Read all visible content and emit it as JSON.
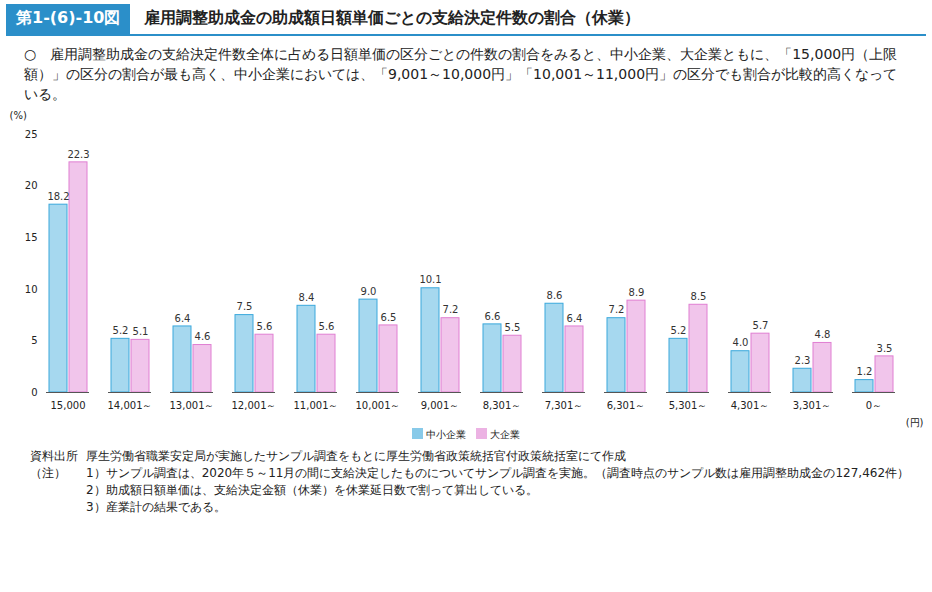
{
  "chart_data": {
    "type": "bar",
    "header_number": "第1-(6)-10図",
    "title": "雇用調整助成金の助成額日額単価ごとの支給決定件数の割合（休業）",
    "subtitle": "○　雇用調整助成金の支給決定件数全体に占める日額単価の区分ごとの件数の割合をみると、中小企業、大企業ともに、「15,000円（上限額）」の区分の割合が最も高く、中小企業においては、「9,001～10,000円」「10,001～11,000円」の区分でも割合が比較的高くなっている。",
    "x_label": "(円)",
    "y_label": "(%)",
    "categories": [
      "15,000",
      "14,001～",
      "13,001～",
      "12,001～",
      "11,001～",
      "10,001～",
      "9,001～",
      "8,301～",
      "7,301～",
      "6,301～",
      "5,301～",
      "4,301～",
      "3,301～",
      "0～"
    ],
    "series": [
      {
        "name": "中小企業",
        "color": "#3aa8dc",
        "values": [
          18.2,
          5.2,
          6.4,
          7.5,
          8.4,
          9.0,
          10.1,
          6.6,
          8.6,
          7.2,
          5.2,
          4.0,
          2.3,
          1.2
        ],
        "value_labels": [
          "18.2",
          "5.2",
          "6.4",
          "7.5",
          "8.4",
          "9.0",
          "10.1",
          "6.6",
          "8.6",
          "7.2",
          "5.2",
          "4.0",
          "2.3",
          "1.2"
        ]
      },
      {
        "name": "大企業",
        "color": "#e07fd2",
        "values": [
          22.3,
          5.1,
          4.6,
          5.6,
          5.6,
          6.5,
          7.2,
          5.5,
          6.4,
          8.9,
          8.5,
          5.7,
          4.8,
          3.5
        ],
        "value_labels": [
          "22.3",
          "5.1",
          "4.6",
          "5.6",
          "5.6",
          "6.5",
          "7.2",
          "5.5",
          "6.4",
          "8.9",
          "8.5",
          "5.7",
          "4.8",
          "3.5"
        ]
      }
    ],
    "ylim": [
      0,
      25
    ],
    "yticks": [
      0,
      5,
      10,
      15,
      20,
      25
    ],
    "grid": false,
    "data_labels": true,
    "legend": "bottom",
    "source": [
      "資料出所",
      "厚生労働省職業安定局が実施したサンプル調査をもとに厚生労働省政策統括官付政策統括室にて作成"
    ],
    "notes_label": "（注）",
    "notes": [
      "1）サンプル調査は、2020年５～11月の間に支給決定したものについてサンプル調査を実施。（調査時点のサンプル数は雇用調整助成金の127,462件）",
      "2）助成額日額単価は、支給決定金額（休業）を休業延日数で割って算出している。",
      "3）産業計の結果である。"
    ]
  }
}
